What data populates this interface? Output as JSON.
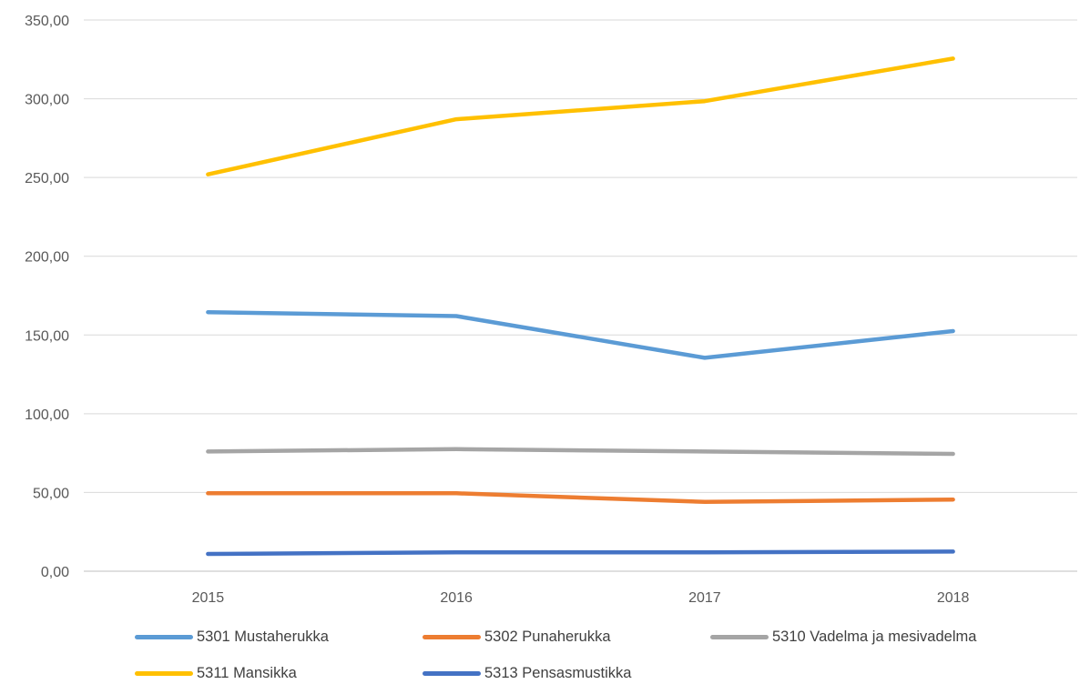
{
  "chart_data": {
    "type": "line",
    "title": "",
    "xlabel": "",
    "ylabel": "",
    "categories": [
      "2015",
      "2016",
      "2017",
      "2018"
    ],
    "ylim": [
      0,
      350
    ],
    "y_ticks": [
      "0,00",
      "50,00",
      "100,00",
      "150,00",
      "200,00",
      "250,00",
      "300,00",
      "350,00"
    ],
    "grid": "horizontal",
    "legend_position": "bottom",
    "series": [
      {
        "name": "5301 Mustaherukka",
        "color": "#5B9BD5",
        "values": [
          164.5,
          162.0,
          135.5,
          152.5
        ]
      },
      {
        "name": "5302 Punaherukka",
        "color": "#ED7D31",
        "values": [
          49.5,
          49.5,
          44.0,
          45.5
        ]
      },
      {
        "name": "5310 Vadelma ja mesivadelma",
        "color": "#A5A5A5",
        "values": [
          76.0,
          77.5,
          76.0,
          74.5
        ]
      },
      {
        "name": "5311 Mansikka",
        "color": "#FFC000",
        "values": [
          252.0,
          287.0,
          298.5,
          325.5
        ]
      },
      {
        "name": "5313 Pensasmustikka",
        "color": "#4472C4",
        "values": [
          11.0,
          12.0,
          12.0,
          12.5
        ]
      }
    ]
  }
}
